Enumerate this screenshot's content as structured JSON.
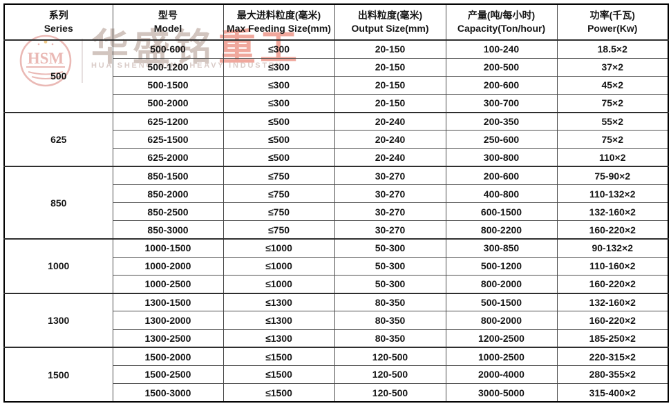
{
  "watermark": {
    "logo_text": "HSM",
    "brand_zh_gray": "华盛铭",
    "brand_zh_red": "重工",
    "brand_en": "HUA SHENG MING HEAVY INDUSTRY"
  },
  "colors": {
    "outer_border": "#000000",
    "inner_border": "#4a4a4a",
    "cell_text": "#161616",
    "watermark_logo_pink": "#e8b2ae",
    "watermark_zh_gray": "#d2c5bf",
    "watermark_zh_red": "#f0a79c",
    "watermark_en_gray": "#d9cbc7"
  },
  "table": {
    "columns": [
      {
        "zh": "系列",
        "en": "Series"
      },
      {
        "zh": "型号",
        "en": "Model"
      },
      {
        "zh": "最大进料粒度(毫米)",
        "en": "Max Feeding Size(mm)"
      },
      {
        "zh": "出料粒度(毫米)",
        "en": "Output Size(mm)"
      },
      {
        "zh": "产量(吨/每小时)",
        "en": "Capacity(Ton/hour)"
      },
      {
        "zh": "功率(千瓦)",
        "en": "Power(Kw)"
      }
    ],
    "groups": [
      {
        "series": "500",
        "rows": [
          [
            "500-600",
            "≤300",
            "20-150",
            "100-240",
            "18.5×2"
          ],
          [
            "500-1200",
            "≤300",
            "20-150",
            "200-500",
            "37×2"
          ],
          [
            "500-1500",
            "≤300",
            "20-150",
            "200-600",
            "45×2"
          ],
          [
            "500-2000",
            "≤300",
            "20-150",
            "300-700",
            "75×2"
          ]
        ]
      },
      {
        "series": "625",
        "rows": [
          [
            "625-1200",
            "≤500",
            "20-240",
            "200-350",
            "55×2"
          ],
          [
            "625-1500",
            "≤500",
            "20-240",
            "250-600",
            "75×2"
          ],
          [
            "625-2000",
            "≤500",
            "20-240",
            "300-800",
            "110×2"
          ]
        ]
      },
      {
        "series": "850",
        "rows": [
          [
            "850-1500",
            "≤750",
            "30-270",
            "200-600",
            "75-90×2"
          ],
          [
            "850-2000",
            "≤750",
            "30-270",
            "400-800",
            "110-132×2"
          ],
          [
            "850-2500",
            "≤750",
            "30-270",
            "600-1500",
            "132-160×2"
          ],
          [
            "850-3000",
            "≤750",
            "30-270",
            "800-2200",
            "160-220×2"
          ]
        ]
      },
      {
        "series": "1000",
        "rows": [
          [
            "1000-1500",
            "≤1000",
            "50-300",
            "300-850",
            "90-132×2"
          ],
          [
            "1000-2000",
            "≤1000",
            "50-300",
            "500-1200",
            "110-160×2"
          ],
          [
            "1000-2500",
            "≤1000",
            "50-300",
            "800-2000",
            "160-220×2"
          ]
        ]
      },
      {
        "series": "1300",
        "rows": [
          [
            "1300-1500",
            "≤1300",
            "80-350",
            "500-1500",
            "132-160×2"
          ],
          [
            "1300-2000",
            "≤1300",
            "80-350",
            "800-2000",
            "160-220×2"
          ],
          [
            "1300-2500",
            "≤1300",
            "80-350",
            "1200-2500",
            "185-250×2"
          ]
        ]
      },
      {
        "series": "1500",
        "rows": [
          [
            "1500-2000",
            "≤1500",
            "120-500",
            "1000-2500",
            "220-315×2"
          ],
          [
            "1500-2500",
            "≤1500",
            "120-500",
            "2000-4000",
            "280-355×2"
          ],
          [
            "1500-3000",
            "≤1500",
            "120-500",
            "3000-5000",
            "315-400×2"
          ]
        ]
      }
    ]
  }
}
